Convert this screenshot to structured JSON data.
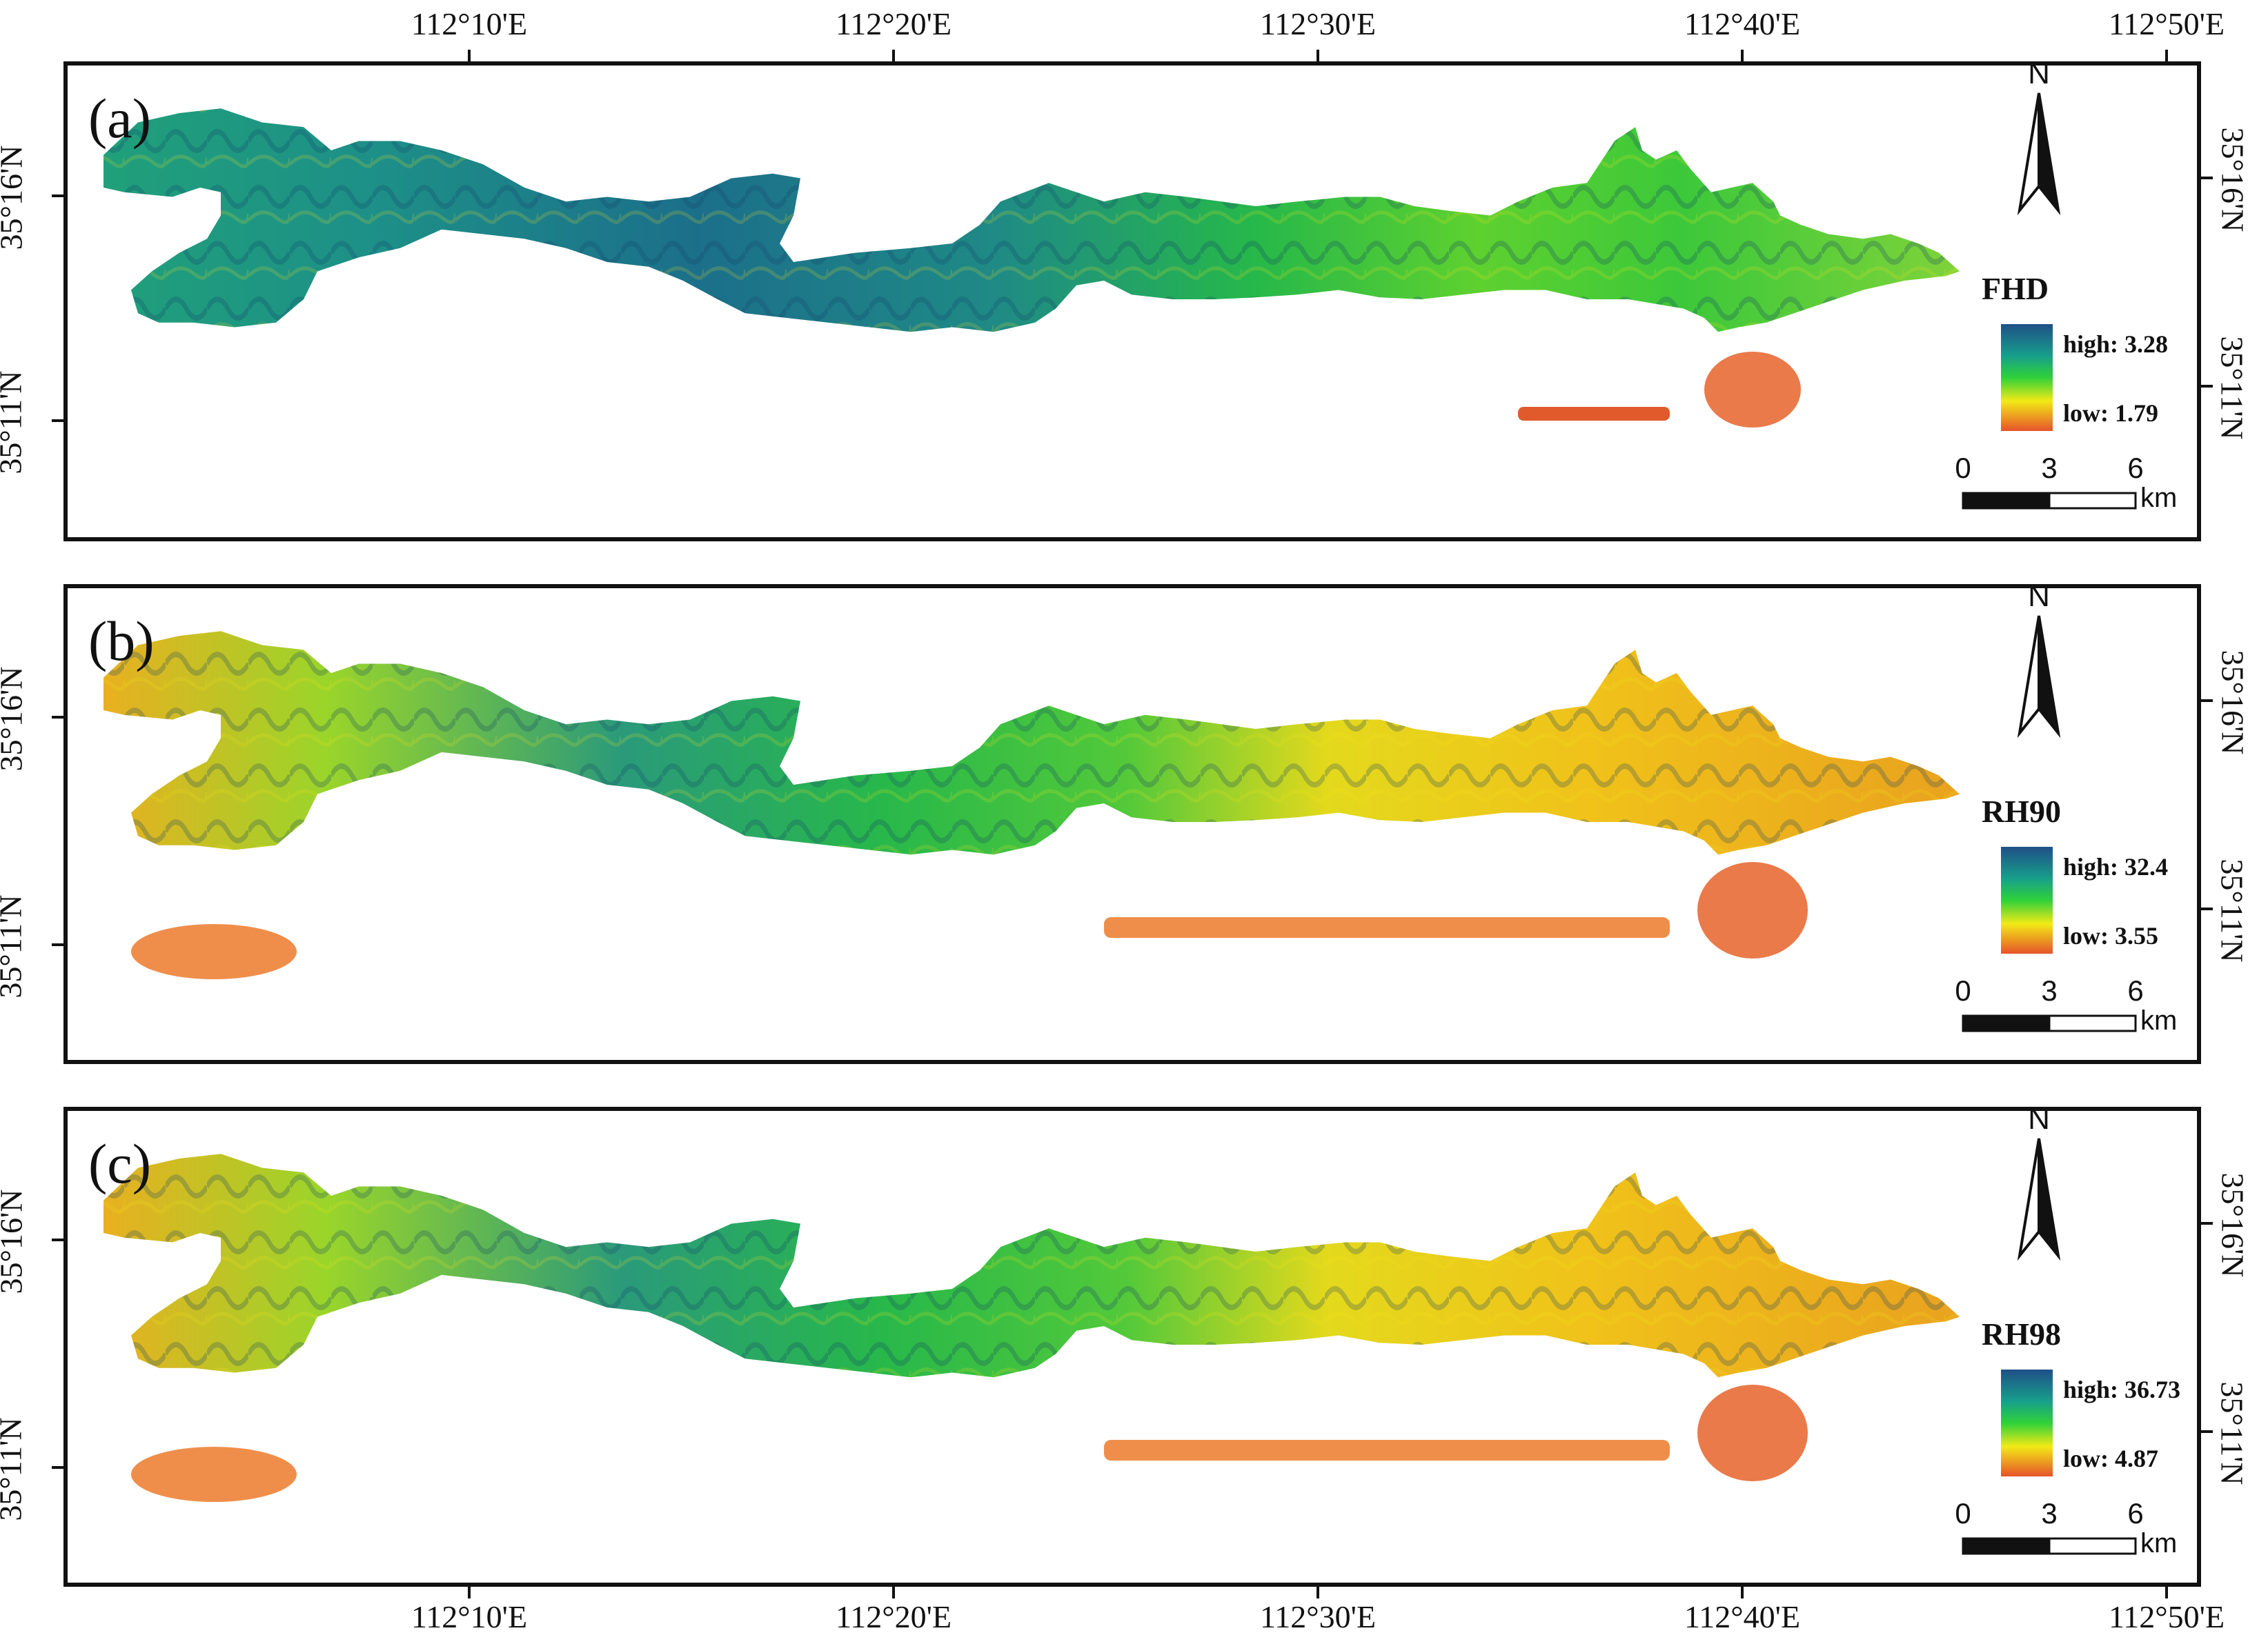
{
  "graticule": {
    "longitudes_top": [
      "112°10'E",
      "112°20'E",
      "112°30'E",
      "112°40'E",
      "112°50'E"
    ],
    "longitudes_bottom": [
      "112°10'E",
      "112°20'E",
      "112°30'E",
      "112°40'E",
      "112°50'E"
    ],
    "latitudes": [
      "35°16'N",
      "35°11'N"
    ]
  },
  "panels": [
    {
      "letter": "(a)",
      "legend_title": "FHD",
      "high_label": "high: 3.28",
      "low_label": "low: 1.79",
      "palette": "fhd"
    },
    {
      "letter": "(b)",
      "legend_title": "RH90",
      "high_label": "high: 32.4",
      "low_label": "low: 3.55",
      "palette": "rh"
    },
    {
      "letter": "(c)",
      "legend_title": "RH98",
      "high_label": "high: 36.73",
      "low_label": "low: 4.87",
      "palette": "rh"
    }
  ],
  "north_arrow": {
    "label": "N",
    "icon": "north-arrow-icon"
  },
  "scale_bar": {
    "ticks": [
      "0",
      "3",
      "6"
    ],
    "unit": "km"
  },
  "colors": {
    "high": "#1f5a8a",
    "mid_high": "#1aa08a",
    "mid": "#2ecc40",
    "mid_low": "#f5e61a",
    "low": "#e8552b"
  }
}
